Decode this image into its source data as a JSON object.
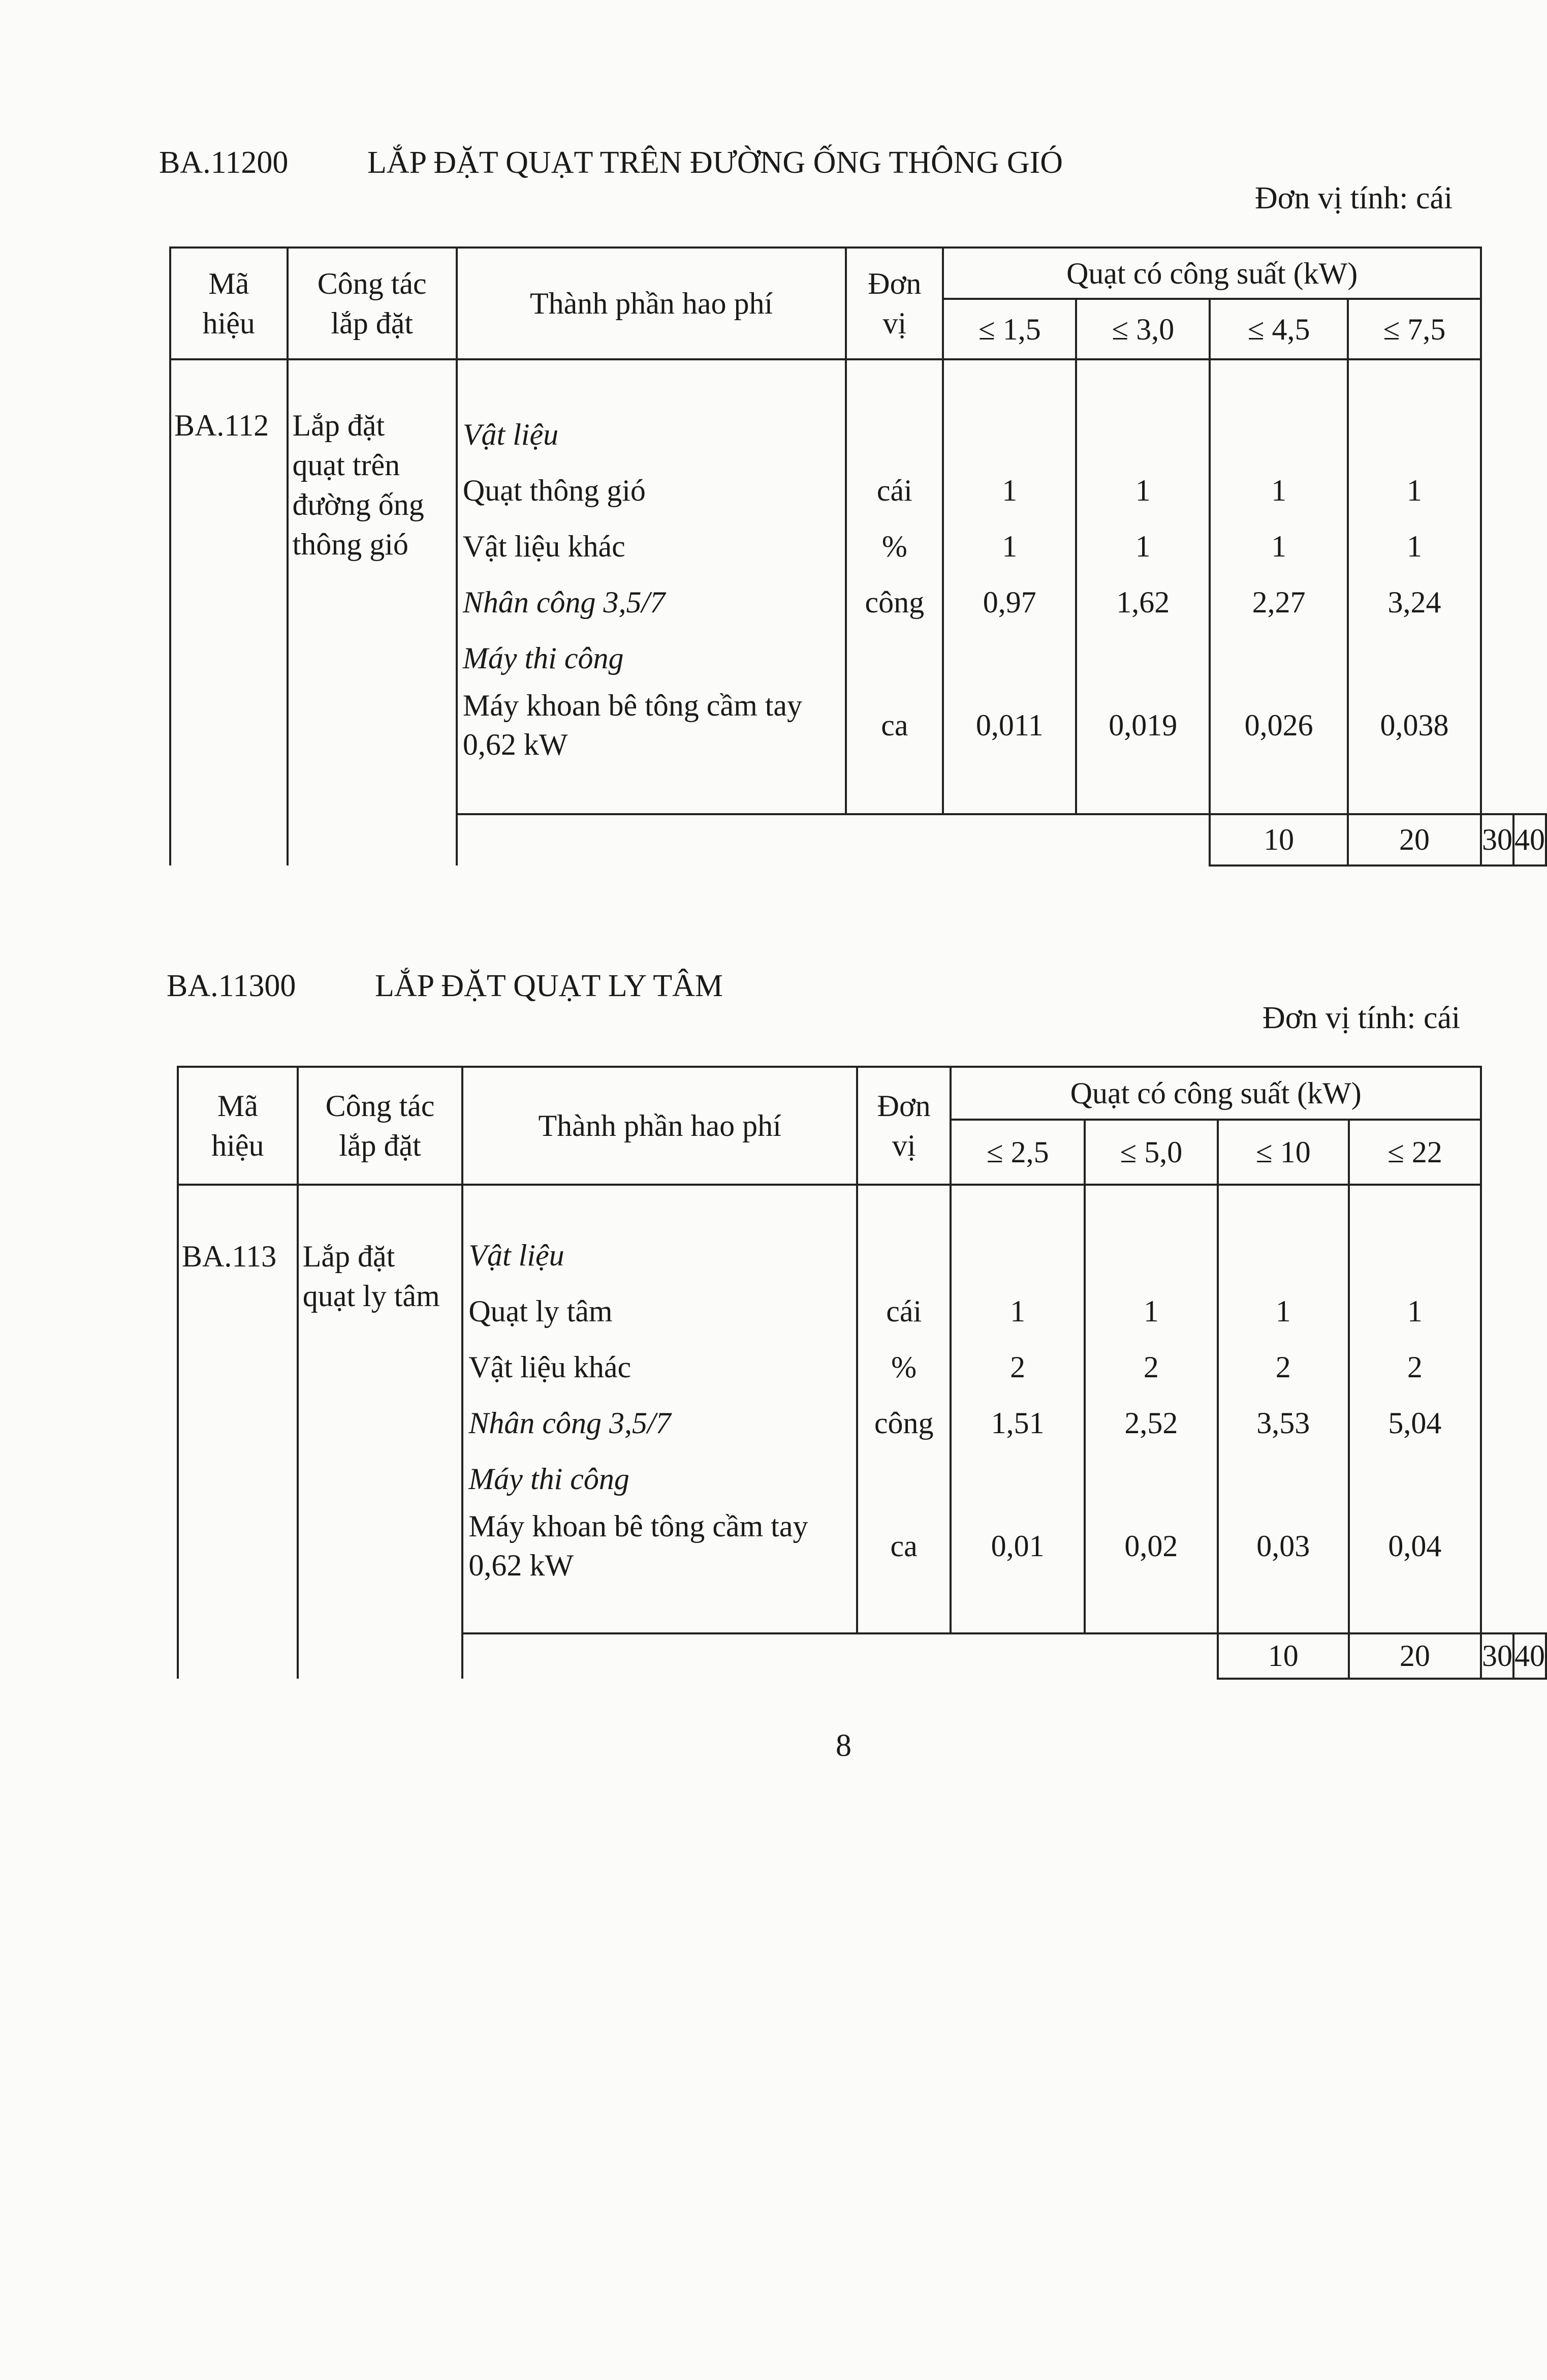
{
  "sections": [
    {
      "code": "BA.11200",
      "title": "LẮP ĐẶT QUẠT TRÊN ĐƯỜNG ỐNG THÔNG GIÓ",
      "unit_note": "Đơn vị tính: cái",
      "headers": {
        "ma_hieu": [
          "Mã",
          "hiệu"
        ],
        "cong_tac": [
          "Công tác",
          "lắp đặt"
        ],
        "thanh_phan": "Thành phần hao phí",
        "don_vi": [
          "Đơn",
          "vị"
        ],
        "group": "Quạt có công suất (kW)",
        "capacities": [
          "≤ 1,5",
          "≤ 3,0",
          "≤ 4,5",
          "≤ 7,5"
        ]
      },
      "ma_hieu": "BA.112",
      "cong_tac": [
        "Lắp đặt",
        "quạt trên",
        "đường ống",
        "thông gió"
      ],
      "rows": [
        {
          "label": "Vật liệu",
          "italic": true,
          "unit": "",
          "values": [
            "",
            "",
            "",
            ""
          ]
        },
        {
          "label": "Quạt thông gió",
          "italic": false,
          "unit": "cái",
          "values": [
            "1",
            "1",
            "1",
            "1"
          ]
        },
        {
          "label": "Vật liệu khác",
          "italic": false,
          "unit": "%",
          "values": [
            "1",
            "1",
            "1",
            "1"
          ]
        },
        {
          "label": "Nhân công 3,5/7",
          "italic": true,
          "unit": "công",
          "values": [
            "0,97",
            "1,62",
            "2,27",
            "3,24"
          ]
        },
        {
          "label": "Máy thi công",
          "italic": true,
          "unit": "",
          "values": [
            "",
            "",
            "",
            ""
          ]
        }
      ],
      "machine_row": {
        "label": [
          "Máy khoan bê tông cầm tay",
          "0,62 kW"
        ],
        "unit": "ca",
        "values": [
          "0,011",
          "0,019",
          "0,026",
          "0,038"
        ]
      },
      "footer": [
        "10",
        "20",
        "30",
        "40"
      ]
    },
    {
      "code": "BA.11300",
      "title": "LẮP ĐẶT QUẠT LY TÂM",
      "unit_note": "Đơn vị tính: cái",
      "headers": {
        "ma_hieu": [
          "Mã",
          "hiệu"
        ],
        "cong_tac": [
          "Công tác",
          "lắp đặt"
        ],
        "thanh_phan": "Thành phần hao phí",
        "don_vi": [
          "Đơn",
          "vị"
        ],
        "group": "Quạt có công suất (kW)",
        "capacities": [
          "≤ 2,5",
          "≤ 5,0",
          "≤ 10",
          "≤ 22"
        ]
      },
      "ma_hieu": "BA.113",
      "cong_tac": [
        "Lắp đặt",
        "quạt ly tâm"
      ],
      "rows": [
        {
          "label": "Vật liệu",
          "italic": true,
          "unit": "",
          "values": [
            "",
            "",
            "",
            ""
          ]
        },
        {
          "label": "Quạt ly tâm",
          "italic": false,
          "unit": "cái",
          "values": [
            "1",
            "1",
            "1",
            "1"
          ]
        },
        {
          "label": "Vật liệu khác",
          "italic": false,
          "unit": "%",
          "values": [
            "2",
            "2",
            "2",
            "2"
          ]
        },
        {
          "label": "Nhân công 3,5/7",
          "italic": true,
          "unit": "công",
          "values": [
            "1,51",
            "2,52",
            "3,53",
            "5,04"
          ]
        },
        {
          "label": "Máy thi công",
          "italic": true,
          "unit": "",
          "values": [
            "",
            "",
            "",
            ""
          ]
        }
      ],
      "machine_row": {
        "label": [
          "Máy khoan bê tông cầm tay",
          "0,62 kW"
        ],
        "unit": "ca",
        "values": [
          "0,01",
          "0,02",
          "0,03",
          "0,04"
        ]
      },
      "footer": [
        "10",
        "20",
        "30",
        "40"
      ]
    }
  ],
  "page_number": "8"
}
